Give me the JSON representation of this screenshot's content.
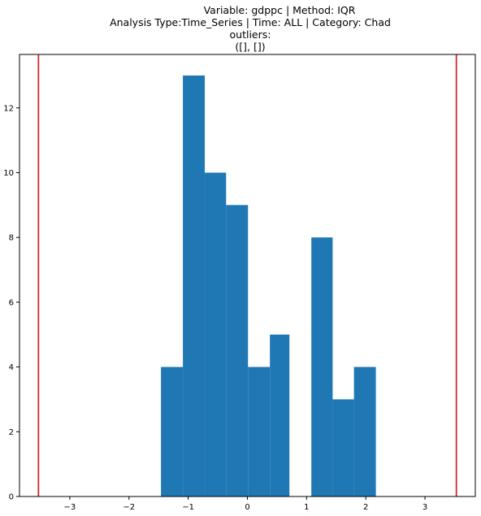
{
  "chart_data": {
    "type": "bar",
    "title_lines": [
      "Variable: gdppc | Method: IQR",
      "Analysis Type:Time_Series | Time: ALL | Category: Chad",
      "outliers:",
      "([], [])"
    ],
    "xlabel": "",
    "ylabel": "",
    "xlim": [
      -3.85,
      3.85
    ],
    "ylim": [
      0,
      13.65
    ],
    "xticks": [
      -3,
      -2,
      -1,
      0,
      1,
      2,
      3
    ],
    "xtick_labels": [
      "−3",
      "−2",
      "−1",
      "0",
      "1",
      "2",
      "3"
    ],
    "yticks": [
      0,
      2,
      4,
      6,
      8,
      10,
      12
    ],
    "ytick_labels": [
      "0",
      "2",
      "4",
      "6",
      "8",
      "10",
      "12"
    ],
    "bin_edges": [
      -1.46,
      -1.09,
      -0.72,
      -0.36,
      0.01,
      0.38,
      0.71,
      1.08,
      1.44,
      1.8,
      2.17
    ],
    "counts": [
      4,
      13,
      10,
      9,
      4,
      5,
      0,
      8,
      3,
      4
    ],
    "bar_color": "#1f77b4",
    "threshold_lines": [
      -3.53,
      3.53
    ],
    "threshold_color": "#d62728",
    "grid": false,
    "legend": "none"
  }
}
